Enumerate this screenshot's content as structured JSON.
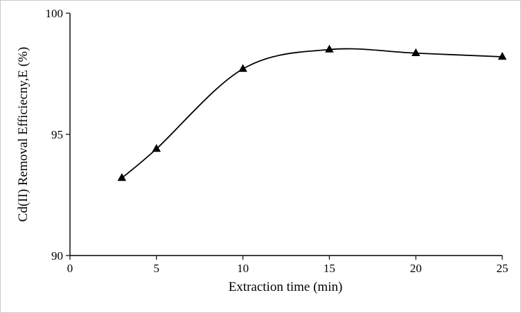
{
  "figure": {
    "background": "#ffffff",
    "border_color": "#c9c9c9"
  },
  "chart_data": {
    "type": "line",
    "title": "",
    "xlabel": "Extraction time (min)",
    "ylabel": "Cd(II) Removal Efficiecny,E (%)",
    "x": [
      3,
      5,
      10,
      15,
      20,
      25
    ],
    "y": [
      93.2,
      94.4,
      97.7,
      98.5,
      98.35,
      98.2
    ],
    "xlim": [
      0,
      25
    ],
    "ylim": [
      90,
      100
    ],
    "xticks": [
      0,
      5,
      10,
      15,
      20,
      25
    ],
    "yticks": [
      90,
      95,
      100
    ],
    "grid": false,
    "legend_position": "none",
    "line_color": "#000000",
    "marker": "filled-triangle",
    "marker_color": "#000000"
  }
}
